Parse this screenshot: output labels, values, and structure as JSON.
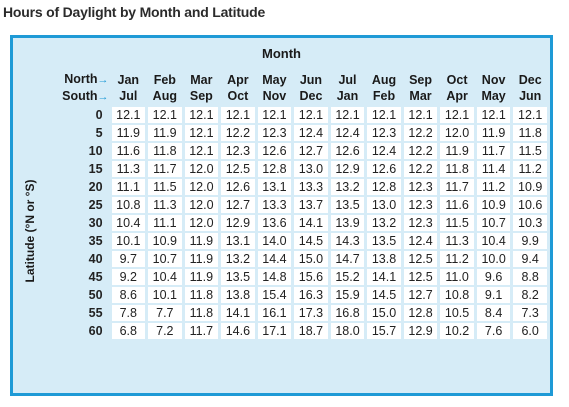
{
  "title": "Hours of Daylight by Month and Latitude",
  "header": {
    "month_label": "Month",
    "north_label": "North",
    "south_label": "South",
    "north_months": [
      "Jan",
      "Feb",
      "Mar",
      "Apr",
      "May",
      "Jun",
      "Jul",
      "Aug",
      "Sep",
      "Oct",
      "Nov",
      "Dec"
    ],
    "south_months": [
      "Jul",
      "Aug",
      "Sep",
      "Oct",
      "Nov",
      "Dec",
      "Jan",
      "Feb",
      "Mar",
      "Apr",
      "May",
      "Jun"
    ]
  },
  "side_label": "Latitude (°N or °S)",
  "rows": [
    {
      "lat": "0",
      "values": [
        "12.1",
        "12.1",
        "12.1",
        "12.1",
        "12.1",
        "12.1",
        "12.1",
        "12.1",
        "12.1",
        "12.1",
        "12.1",
        "12.1"
      ]
    },
    {
      "lat": "5",
      "values": [
        "11.9",
        "11.9",
        "12.1",
        "12.2",
        "12.3",
        "12.4",
        "12.4",
        "12.3",
        "12.2",
        "12.0",
        "11.9",
        "11.8"
      ]
    },
    {
      "lat": "10",
      "values": [
        "11.6",
        "11.8",
        "12.1",
        "12.3",
        "12.6",
        "12.7",
        "12.6",
        "12.4",
        "12.2",
        "11.9",
        "11.7",
        "11.5"
      ]
    },
    {
      "lat": "15",
      "values": [
        "11.3",
        "11.7",
        "12.0",
        "12.5",
        "12.8",
        "13.0",
        "12.9",
        "12.6",
        "12.2",
        "11.8",
        "11.4",
        "11.2"
      ]
    },
    {
      "lat": "20",
      "values": [
        "11.1",
        "11.5",
        "12.0",
        "12.6",
        "13.1",
        "13.3",
        "13.2",
        "12.8",
        "12.3",
        "11.7",
        "11.2",
        "10.9"
      ]
    },
    {
      "lat": "25",
      "values": [
        "10.8",
        "11.3",
        "12.0",
        "12.7",
        "13.3",
        "13.7",
        "13.5",
        "13.0",
        "12.3",
        "11.6",
        "10.9",
        "10.6"
      ]
    },
    {
      "lat": "30",
      "values": [
        "10.4",
        "11.1",
        "12.0",
        "12.9",
        "13.6",
        "14.1",
        "13.9",
        "13.2",
        "12.3",
        "11.5",
        "10.7",
        "10.3"
      ]
    },
    {
      "lat": "35",
      "values": [
        "10.1",
        "10.9",
        "11.9",
        "13.1",
        "14.0",
        "14.5",
        "14.3",
        "13.5",
        "12.4",
        "11.3",
        "10.4",
        "9.9"
      ]
    },
    {
      "lat": "40",
      "values": [
        "9.7",
        "10.7",
        "11.9",
        "13.2",
        "14.4",
        "15.0",
        "14.7",
        "13.8",
        "12.5",
        "11.2",
        "10.0",
        "9.4"
      ]
    },
    {
      "lat": "45",
      "values": [
        "9.2",
        "10.4",
        "11.9",
        "13.5",
        "14.8",
        "15.6",
        "15.2",
        "14.1",
        "12.5",
        "11.0",
        "9.6",
        "8.8"
      ]
    },
    {
      "lat": "50",
      "values": [
        "8.6",
        "10.1",
        "11.8",
        "13.8",
        "15.4",
        "16.3",
        "15.9",
        "14.5",
        "12.7",
        "10.8",
        "9.1",
        "8.2"
      ]
    },
    {
      "lat": "55",
      "values": [
        "7.8",
        "7.7",
        "11.8",
        "14.1",
        "16.1",
        "17.3",
        "16.8",
        "15.0",
        "12.8",
        "10.5",
        "8.4",
        "7.3"
      ]
    },
    {
      "lat": "60",
      "values": [
        "6.8",
        "7.2",
        "11.7",
        "14.6",
        "17.1",
        "18.7",
        "18.0",
        "15.7",
        "12.9",
        "10.2",
        "7.6",
        "6.0"
      ]
    }
  ]
}
